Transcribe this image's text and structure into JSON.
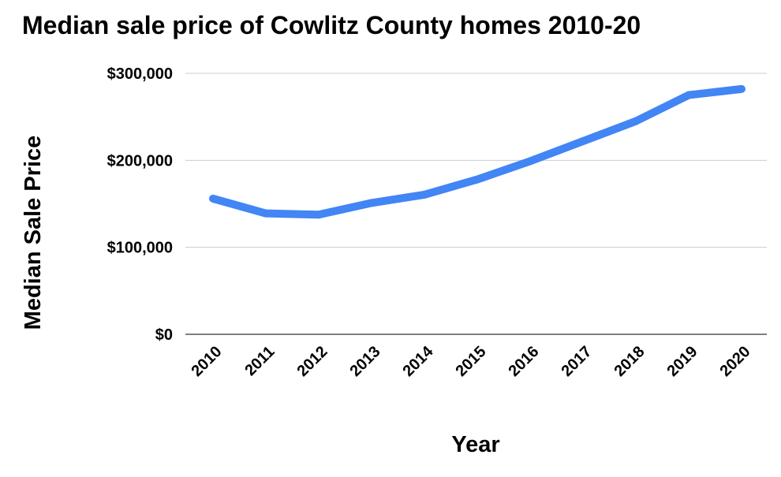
{
  "chart_data": {
    "type": "line",
    "title": "Median sale price of Cowlitz County homes 2010-20",
    "xlabel": "Year",
    "ylabel": "Median Sale Price",
    "x": [
      "2010",
      "2011",
      "2012",
      "2013",
      "2014",
      "2015",
      "2016",
      "2017",
      "2018",
      "2019",
      "2020"
    ],
    "series": [
      {
        "values": [
          156000,
          139000,
          137500,
          151000,
          160500,
          178000,
          199000,
          222000,
          245000,
          275000,
          282000
        ]
      }
    ],
    "ylim": [
      0,
      300000
    ],
    "yticks": [
      "$0",
      "$100,000",
      "$200,000",
      "$300,000"
    ],
    "grid": true,
    "legend": "none",
    "line_color": "#4285f4",
    "grid_color": "#cccccc"
  }
}
